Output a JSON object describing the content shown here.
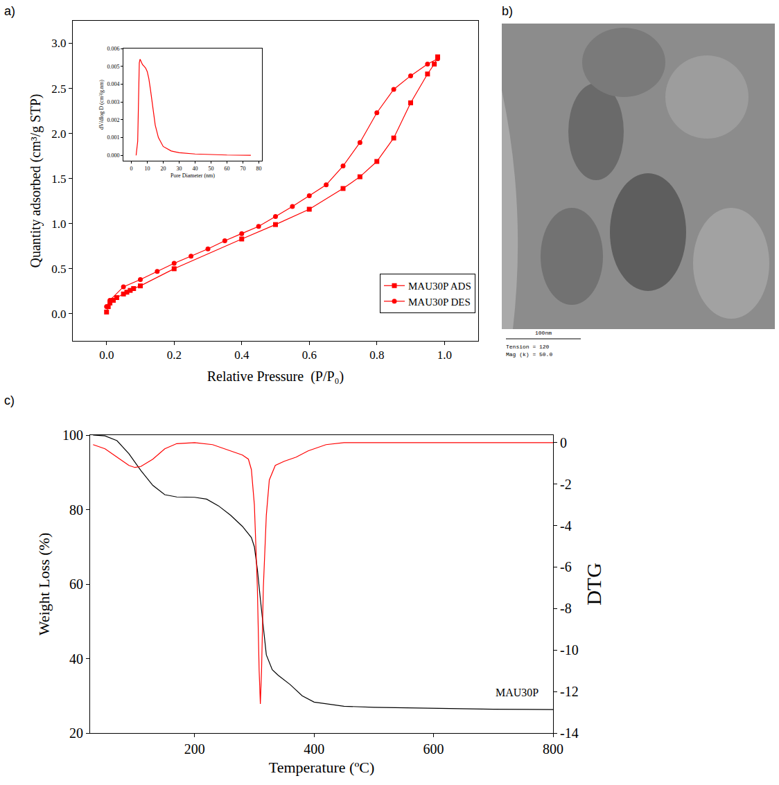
{
  "chart_data": [
    {
      "panel_label": "a)",
      "type": "scatter",
      "x_label": "Relative Pressure  (P/P₀)",
      "y_label": "Quantity adsorbed (cm³/g STP)",
      "xlim": [
        -0.1,
        1.1
      ],
      "xticks": [
        {
          "value": 0,
          "label": "0.0"
        },
        0.2,
        0.4,
        0.6,
        0.8,
        {
          "value": 1,
          "label": "1.0"
        }
      ],
      "ylim": [
        -0.3,
        3.25
      ],
      "yticks": [
        {
          "value": 0,
          "label": "0.0"
        },
        0.5,
        {
          "value": 1,
          "label": "1.0"
        },
        1.5,
        {
          "value": 2,
          "label": "2.0"
        },
        2.5,
        {
          "value": 3,
          "label": "3.0"
        }
      ],
      "grid": false,
      "legend": "lower right",
      "series": [
        {
          "name": "MAU30P ADS",
          "color": "#ff0000",
          "marker": "square",
          "line_style": "solid",
          "x": [
            0,
            0.005,
            0.01,
            0.02,
            0.03,
            0.05,
            0.06,
            0.07,
            0.08,
            0.1,
            0.2,
            0.4,
            0.5,
            0.6,
            0.7,
            0.75,
            0.8,
            0.85,
            0.9,
            0.95,
            0.97,
            0.98
          ],
          "values": [
            0.02,
            0.08,
            0.12,
            0.15,
            0.18,
            0.22,
            0.24,
            0.26,
            0.28,
            0.31,
            0.5,
            0.83,
            0.99,
            1.16,
            1.39,
            1.52,
            1.69,
            1.95,
            2.34,
            2.66,
            2.77,
            2.85
          ]
        },
        {
          "name": "MAU30P DES",
          "color": "#ff0000",
          "marker": "circle",
          "line_style": "solid",
          "x": [
            0.98,
            0.95,
            0.9,
            0.85,
            0.8,
            0.75,
            0.7,
            0.65,
            0.6,
            0.55,
            0.5,
            0.45,
            0.4,
            0.35,
            0.3,
            0.25,
            0.2,
            0.15,
            0.1,
            0.05,
            0.01,
            0
          ],
          "values": [
            2.83,
            2.77,
            2.64,
            2.49,
            2.23,
            1.9,
            1.64,
            1.43,
            1.31,
            1.19,
            1.08,
            0.97,
            0.89,
            0.81,
            0.72,
            0.64,
            0.56,
            0.47,
            0.38,
            0.3,
            0.15,
            0.08
          ]
        }
      ]
    },
    {
      "type": "line",
      "x_label": "Pore Diameter (nm)",
      "y_label": "dV/dlog D (cm³/g.nm)",
      "xlim": [
        -5,
        82
      ],
      "xticks": [
        0,
        10,
        20,
        30,
        40,
        50,
        60,
        70,
        80
      ],
      "ylim": [
        -0.0003,
        0.006
      ],
      "yticks": [
        {
          "value": 0,
          "label": "0.000"
        },
        0.001,
        0.002,
        0.003,
        0.004,
        0.005,
        0.006
      ],
      "grid": false,
      "series": [
        {
          "color": "#ff0000",
          "marker": "none",
          "line_style": "solid",
          "x": [
            3,
            4,
            4.5,
            5,
            5.5,
            6,
            7,
            8,
            9,
            10,
            11,
            12,
            13,
            14,
            15,
            17,
            20,
            25,
            30,
            40,
            50,
            60,
            75
          ],
          "values": [
            0,
            0.0008,
            0.003,
            0.0052,
            0.0054,
            0.0053,
            0.0051,
            0.005,
            0.0049,
            0.0047,
            0.0043,
            0.0037,
            0.003,
            0.0023,
            0.0017,
            0.001,
            0.0005,
            0.00025,
            0.00015,
            8e-05,
            4e-05,
            2e-05,
            1e-05
          ]
        }
      ]
    },
    {
      "panel_label": "c)",
      "type": "line",
      "x_label": "Temperature (ºC)",
      "y_label": "Weight Loss (%)",
      "y2_label": "DTG",
      "xlim": [
        25,
        800
      ],
      "xticks": [
        200,
        400,
        600,
        800
      ],
      "ylim": [
        20,
        100
      ],
      "yticks": [
        20,
        40,
        60,
        80,
        100
      ],
      "y2lim": [
        -14,
        0.36
      ],
      "y2ticks": [
        -14,
        -12,
        -10,
        -8,
        -6,
        -4,
        -2,
        0
      ],
      "grid": false,
      "annotations": [
        {
          "text": "MAU30P",
          "x": 740,
          "y": 29
        }
      ],
      "series": [
        {
          "color": "#000000",
          "marker": "none",
          "line_style": "solid",
          "x": [
            30,
            50,
            70,
            90,
            110,
            130,
            150,
            170,
            200,
            220,
            240,
            260,
            280,
            295,
            300,
            305,
            310,
            315,
            320,
            330,
            340,
            360,
            380,
            400,
            450,
            500,
            600,
            700,
            800
          ],
          "values": [
            100,
            99.8,
            98.5,
            95,
            90.5,
            86.5,
            84,
            83.4,
            83.3,
            82.8,
            81,
            78.5,
            75.5,
            72.5,
            70,
            64,
            56,
            48,
            41,
            37,
            35.5,
            33,
            30,
            28.3,
            27.2,
            26.9,
            26.6,
            26.4,
            26.3
          ]
        },
        {
          "color": "#ff0000",
          "marker": "none",
          "line_style": "solid",
          "axis": "y2",
          "x": [
            30,
            50,
            70,
            90,
            100,
            110,
            130,
            150,
            170,
            200,
            230,
            260,
            280,
            290,
            295,
            300,
            305,
            308,
            310,
            312,
            315,
            320,
            325,
            335,
            350,
            370,
            390,
            420,
            450,
            600,
            800
          ],
          "values": [
            -0.1,
            -0.3,
            -0.7,
            -1.1,
            -1.2,
            -1.15,
            -0.8,
            -0.3,
            -0.05,
            0,
            -0.1,
            -0.4,
            -0.6,
            -0.8,
            -1.3,
            -3,
            -7,
            -11,
            -12.6,
            -11,
            -7,
            -3.5,
            -1.8,
            -1.1,
            -0.9,
            -0.7,
            -0.4,
            -0.1,
            0,
            0,
            0
          ]
        }
      ]
    }
  ],
  "panel_b": {
    "panel_label": "b)",
    "scale_bar": "100nm",
    "info": [
      "Tension = 120",
      "Mag (k) = 50.0"
    ]
  }
}
